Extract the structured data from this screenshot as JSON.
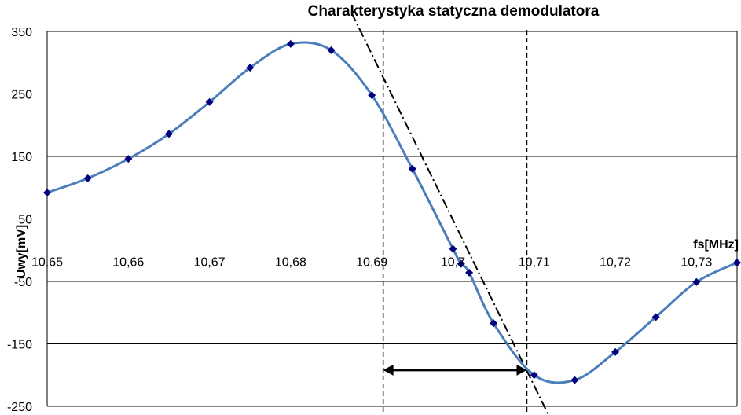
{
  "chart_data": {
    "type": "line",
    "title": "Charakterystyka statyczna demodulatora",
    "xlabel": "fs[MHz]",
    "ylabel": "Uwy[mV]",
    "xlim": [
      10.65,
      10.735
    ],
    "ylim": [
      -250,
      350
    ],
    "x_ticks": [
      "10,65",
      "10,66",
      "10,67",
      "10,68",
      "10,69",
      "10,7",
      "10,71",
      "10,72",
      "10,73"
    ],
    "x_tick_values": [
      10.65,
      10.66,
      10.67,
      10.68,
      10.69,
      10.7,
      10.71,
      10.72,
      10.73
    ],
    "y_ticks": [
      "350",
      "250",
      "150",
      "50",
      "-50",
      "-150",
      "-250"
    ],
    "y_tick_values": [
      350,
      250,
      150,
      50,
      -50,
      -150,
      -250
    ],
    "grid": "horizontal",
    "series": [
      {
        "color": "#4a7ebb",
        "marker_color": "#00007f",
        "x": [
          10.65,
          10.655,
          10.66,
          10.665,
          10.67,
          10.675,
          10.68,
          10.685,
          10.69,
          10.695,
          10.7,
          10.701,
          10.702,
          10.705,
          10.71,
          10.715,
          10.72,
          10.725,
          10.73,
          10.735
        ],
        "y": [
          92,
          115,
          146,
          186,
          237,
          292,
          330,
          320,
          248,
          130,
          2,
          -22,
          -36,
          -117,
          -200,
          -208,
          -163,
          -107,
          -51,
          -20
        ]
      }
    ],
    "annotations": {
      "vertical_lines_x": [
        10.6914,
        10.7091
      ],
      "tangent_line": {
        "x": [
          10.6875,
          10.712
        ],
        "y": [
          380,
          -270
        ],
        "style": "dash-dot"
      },
      "double_arrow": {
        "x": [
          10.6914,
          10.7091
        ],
        "y": -192
      }
    }
  }
}
